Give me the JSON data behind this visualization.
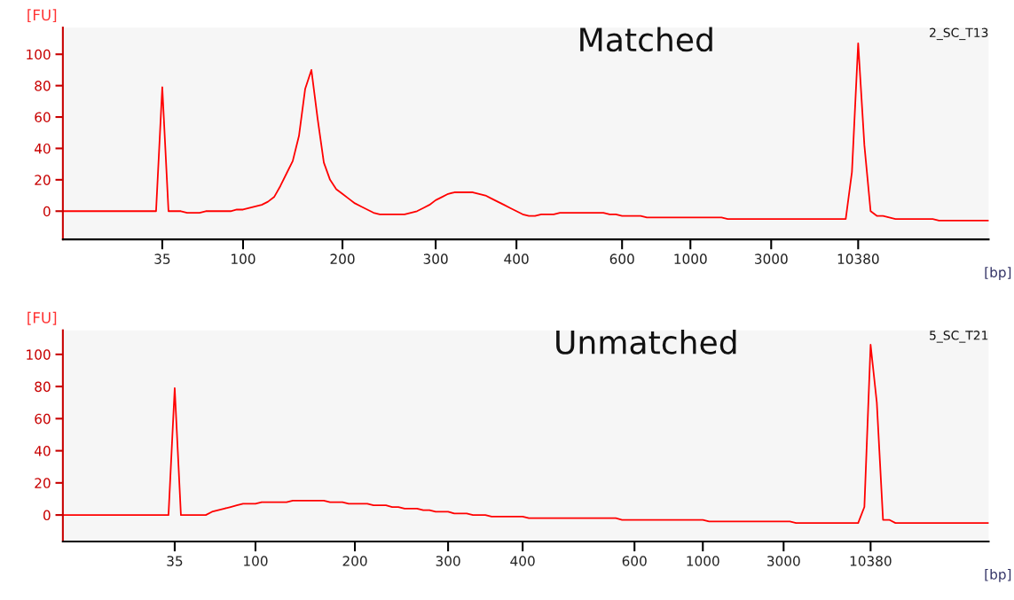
{
  "chart_data": [
    {
      "type": "line",
      "title": "Matched",
      "annotations": [
        "2_SC_T13"
      ],
      "xlabel": "[bp]",
      "ylabel": "[FU]",
      "ylim": [
        -18,
        117
      ],
      "yticks": [
        0,
        20,
        40,
        60,
        80,
        100
      ],
      "grid": false,
      "categories": [
        null,
        null,
        null,
        null,
        null,
        null,
        null,
        null,
        null,
        null,
        null,
        null,
        null,
        null,
        null,
        null,
        "35",
        null,
        null,
        null,
        null,
        null,
        null,
        null,
        null,
        null,
        null,
        null,
        null,
        "100",
        null,
        null,
        null,
        null,
        null,
        null,
        null,
        null,
        null,
        null,
        null,
        null,
        null,
        null,
        null,
        "200",
        null,
        null,
        null,
        null,
        null,
        null,
        null,
        null,
        null,
        null,
        null,
        null,
        null,
        null,
        "300",
        null,
        null,
        null,
        null,
        null,
        null,
        null,
        null,
        null,
        null,
        null,
        null,
        "400",
        null,
        null,
        null,
        null,
        null,
        null,
        null,
        null,
        null,
        null,
        null,
        null,
        null,
        null,
        null,
        null,
        "600",
        null,
        null,
        null,
        null,
        null,
        null,
        null,
        null,
        null,
        null,
        "1000",
        null,
        null,
        null,
        null,
        null,
        null,
        null,
        null,
        null,
        null,
        null,
        null,
        "3000",
        null,
        null,
        null,
        null,
        null,
        null,
        null,
        null,
        null,
        null,
        null,
        null,
        null,
        "10380",
        null,
        null,
        null,
        null,
        null,
        null,
        null,
        null,
        null,
        null,
        null,
        null,
        null,
        null,
        null,
        null,
        null,
        null,
        null,
        null,
        null
      ],
      "series": [
        {
          "color": "#ff0000",
          "values": [
            0,
            0,
            0,
            0,
            0,
            0,
            0,
            0,
            0,
            0,
            0,
            0,
            0,
            0,
            0,
            0,
            79,
            0,
            0,
            0,
            -1,
            -1,
            -1,
            0,
            0,
            0,
            0,
            0,
            1,
            1,
            2,
            3,
            4,
            6,
            9,
            16,
            24,
            32,
            48,
            78,
            90,
            59,
            31,
            20,
            14,
            11,
            8,
            5,
            3,
            1,
            -1,
            -2,
            -2,
            -2,
            -2,
            -2,
            -1,
            0,
            2,
            4,
            7,
            9,
            11,
            12,
            12,
            12,
            12,
            11,
            10,
            8,
            6,
            4,
            2,
            0,
            -2,
            -3,
            -3,
            -2,
            -2,
            -2,
            -1,
            -1,
            -1,
            -1,
            -1,
            -1,
            -1,
            -1,
            -2,
            -2,
            -3,
            -3,
            -3,
            -3,
            -4,
            -4,
            -4,
            -4,
            -4,
            -4,
            -4,
            -4,
            -4,
            -4,
            -4,
            -4,
            -4,
            -5,
            -5,
            -5,
            -5,
            -5,
            -5,
            -5,
            -5,
            -5,
            -5,
            -5,
            -5,
            -5,
            -5,
            -5,
            -5,
            -5,
            -5,
            -5,
            -5,
            25,
            107,
            42,
            0,
            -3,
            -3,
            -4,
            -5,
            -5,
            -5,
            -5,
            -5,
            -5,
            -5,
            -6,
            -6,
            -6,
            -6,
            -6,
            -6,
            -6,
            -6,
            -6
          ]
        }
      ]
    },
    {
      "type": "line",
      "title": "Unmatched",
      "annotations": [
        "5_SC_T21"
      ],
      "xlabel": "[bp]",
      "ylabel": "[FU]",
      "ylim": [
        -16.5,
        115
      ],
      "yticks": [
        0,
        20,
        40,
        60,
        80,
        100
      ],
      "grid": false,
      "categories": [
        null,
        null,
        null,
        null,
        null,
        null,
        null,
        null,
        null,
        null,
        null,
        null,
        null,
        null,
        null,
        null,
        null,
        null,
        "35",
        null,
        null,
        null,
        null,
        null,
        null,
        null,
        null,
        null,
        null,
        null,
        null,
        "100",
        null,
        null,
        null,
        null,
        null,
        null,
        null,
        null,
        null,
        null,
        null,
        null,
        null,
        null,
        null,
        "200",
        null,
        null,
        null,
        null,
        null,
        null,
        null,
        null,
        null,
        null,
        null,
        null,
        null,
        null,
        "300",
        null,
        null,
        null,
        null,
        null,
        null,
        null,
        null,
        null,
        null,
        null,
        "400",
        null,
        null,
        null,
        null,
        null,
        null,
        null,
        null,
        null,
        null,
        null,
        null,
        null,
        null,
        null,
        null,
        null,
        "600",
        null,
        null,
        null,
        null,
        null,
        null,
        null,
        null,
        null,
        null,
        "1000",
        null,
        null,
        null,
        null,
        null,
        null,
        null,
        null,
        null,
        null,
        null,
        null,
        "3000",
        null,
        null,
        null,
        null,
        null,
        null,
        null,
        null,
        null,
        null,
        null,
        null,
        null,
        "10380",
        null,
        null,
        null,
        null,
        null,
        null,
        null,
        null,
        null,
        null,
        null,
        null,
        null,
        null,
        null,
        null,
        null,
        null,
        null
      ],
      "series": [
        {
          "color": "#ff0000",
          "values": [
            0,
            0,
            0,
            0,
            0,
            0,
            0,
            0,
            0,
            0,
            0,
            0,
            0,
            0,
            0,
            0,
            0,
            0,
            79,
            0,
            0,
            0,
            0,
            0,
            2,
            3,
            4,
            5,
            6,
            7,
            7,
            7,
            8,
            8,
            8,
            8,
            8,
            9,
            9,
            9,
            9,
            9,
            9,
            8,
            8,
            8,
            7,
            7,
            7,
            7,
            6,
            6,
            6,
            5,
            5,
            4,
            4,
            4,
            3,
            3,
            2,
            2,
            2,
            1,
            1,
            1,
            0,
            0,
            0,
            -1,
            -1,
            -1,
            -1,
            -1,
            -1,
            -2,
            -2,
            -2,
            -2,
            -2,
            -2,
            -2,
            -2,
            -2,
            -2,
            -2,
            -2,
            -2,
            -2,
            -2,
            -3,
            -3,
            -3,
            -3,
            -3,
            -3,
            -3,
            -3,
            -3,
            -3,
            -3,
            -3,
            -3,
            -3,
            -4,
            -4,
            -4,
            -4,
            -4,
            -4,
            -4,
            -4,
            -4,
            -4,
            -4,
            -4,
            -4,
            -4,
            -5,
            -5,
            -5,
            -5,
            -5,
            -5,
            -5,
            -5,
            -5,
            -5,
            -5,
            5,
            106,
            70,
            -3,
            -3,
            -5,
            -5,
            -5,
            -5,
            -5,
            -5,
            -5,
            -5,
            -5,
            -5,
            -5,
            -5,
            -5,
            -5,
            -5,
            -5
          ]
        }
      ]
    }
  ]
}
